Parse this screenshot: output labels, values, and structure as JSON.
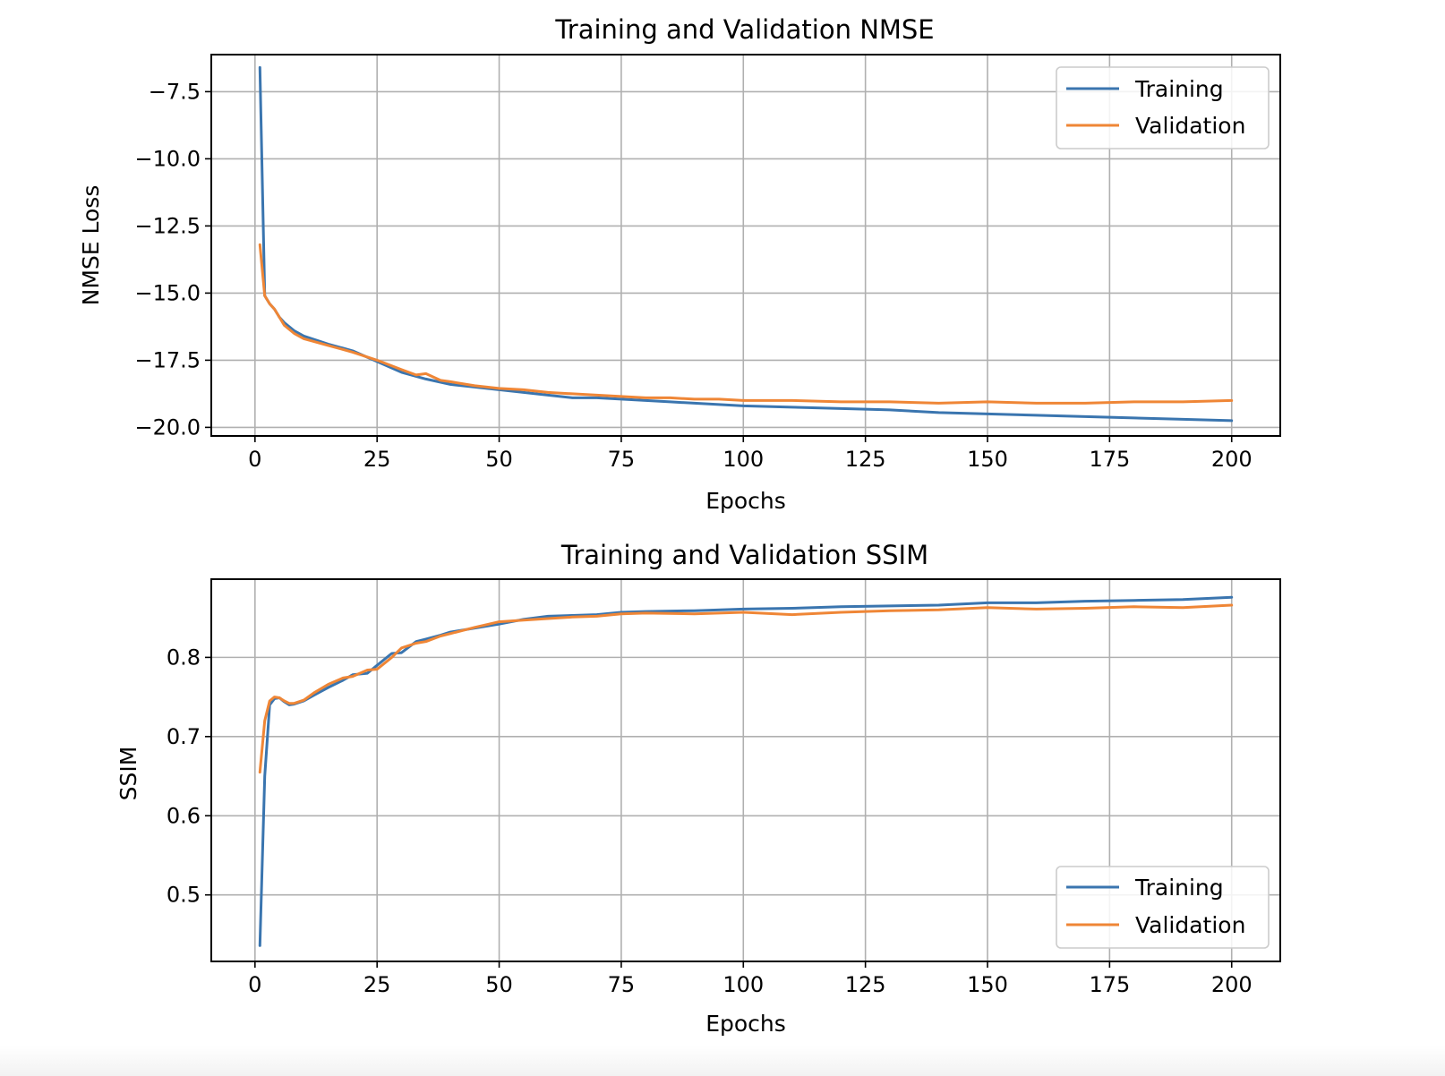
{
  "colors": {
    "training": "#3a75af",
    "validation": "#ef8636"
  },
  "chart_data": [
    {
      "type": "line",
      "title": "Training and Validation NMSE",
      "xlabel": "Epochs",
      "ylabel": "NMSE Loss",
      "xlim": [
        -8.95,
        209.95
      ],
      "ylim": [
        -20.32,
        -6.12
      ],
      "xticks": [
        0,
        25,
        50,
        75,
        100,
        125,
        150,
        175,
        200
      ],
      "xtick_labels": [
        "0",
        "25",
        "50",
        "75",
        "100",
        "125",
        "150",
        "175",
        "200"
      ],
      "yticks": [
        -7.5,
        -10.0,
        -12.5,
        -15.0,
        -17.5,
        -20.0
      ],
      "ytick_labels": [
        "−7.5",
        "−10.0",
        "−12.5",
        "−15.0",
        "−17.5",
        "−20.0"
      ],
      "grid": true,
      "legend_position": "upper right",
      "series": [
        {
          "name": "Training",
          "color": "#3a75af",
          "x": [
            1,
            2,
            3,
            4,
            5,
            6,
            8,
            10,
            15,
            20,
            25,
            30,
            35,
            40,
            45,
            50,
            55,
            60,
            65,
            70,
            75,
            80,
            85,
            90,
            95,
            100,
            110,
            120,
            130,
            140,
            150,
            160,
            170,
            180,
            190,
            200
          ],
          "y": [
            -6.6,
            -15.1,
            -15.4,
            -15.6,
            -15.9,
            -16.1,
            -16.4,
            -16.6,
            -16.9,
            -17.15,
            -17.55,
            -17.95,
            -18.2,
            -18.4,
            -18.5,
            -18.6,
            -18.7,
            -18.8,
            -18.9,
            -18.9,
            -18.95,
            -19.0,
            -19.05,
            -19.1,
            -19.15,
            -19.2,
            -19.25,
            -19.3,
            -19.35,
            -19.45,
            -19.5,
            -19.55,
            -19.6,
            -19.65,
            -19.7,
            -19.75
          ]
        },
        {
          "name": "Validation",
          "color": "#ef8636",
          "x": [
            1,
            2,
            3,
            4,
            5,
            6,
            8,
            10,
            15,
            20,
            25,
            30,
            33,
            35,
            38,
            40,
            45,
            50,
            55,
            60,
            65,
            70,
            75,
            80,
            85,
            90,
            95,
            100,
            110,
            120,
            130,
            140,
            150,
            160,
            170,
            180,
            190,
            200
          ],
          "y": [
            -13.2,
            -15.1,
            -15.4,
            -15.6,
            -15.9,
            -16.2,
            -16.5,
            -16.7,
            -16.95,
            -17.2,
            -17.5,
            -17.85,
            -18.05,
            -18.0,
            -18.25,
            -18.3,
            -18.45,
            -18.55,
            -18.6,
            -18.7,
            -18.75,
            -18.8,
            -18.85,
            -18.9,
            -18.9,
            -18.95,
            -18.95,
            -19.0,
            -19.0,
            -19.05,
            -19.05,
            -19.1,
            -19.05,
            -19.1,
            -19.1,
            -19.05,
            -19.05,
            -19.0
          ]
        }
      ]
    },
    {
      "type": "line",
      "title": "Training and Validation SSIM",
      "xlabel": "Epochs",
      "ylabel": "SSIM",
      "xlim": [
        -8.95,
        209.95
      ],
      "ylim": [
        0.416,
        0.8988
      ],
      "xticks": [
        0,
        25,
        50,
        75,
        100,
        125,
        150,
        175,
        200
      ],
      "xtick_labels": [
        "0",
        "25",
        "50",
        "75",
        "100",
        "125",
        "150",
        "175",
        "200"
      ],
      "yticks": [
        0.5,
        0.6,
        0.7,
        0.8
      ],
      "ytick_labels": [
        "0.5",
        "0.6",
        "0.7",
        "0.8"
      ],
      "grid": true,
      "legend_position": "lower right",
      "series": [
        {
          "name": "Training",
          "color": "#3a75af",
          "x": [
            1,
            2,
            3,
            4,
            5,
            6,
            7,
            8,
            10,
            12,
            15,
            18,
            20,
            23,
            25,
            28,
            30,
            33,
            35,
            38,
            40,
            45,
            50,
            55,
            60,
            65,
            70,
            75,
            80,
            90,
            100,
            110,
            120,
            130,
            140,
            150,
            160,
            170,
            180,
            190,
            200
          ],
          "y": [
            0.436,
            0.65,
            0.74,
            0.748,
            0.749,
            0.744,
            0.74,
            0.741,
            0.745,
            0.752,
            0.762,
            0.771,
            0.778,
            0.78,
            0.79,
            0.805,
            0.806,
            0.82,
            0.823,
            0.828,
            0.832,
            0.837,
            0.842,
            0.848,
            0.852,
            0.853,
            0.854,
            0.857,
            0.858,
            0.859,
            0.861,
            0.862,
            0.864,
            0.865,
            0.866,
            0.869,
            0.869,
            0.871,
            0.872,
            0.873,
            0.876
          ]
        },
        {
          "name": "Validation",
          "color": "#ef8636",
          "x": [
            1,
            2,
            3,
            4,
            5,
            6,
            7,
            8,
            10,
            12,
            15,
            18,
            20,
            23,
            25,
            28,
            30,
            33,
            35,
            38,
            40,
            45,
            50,
            55,
            60,
            65,
            70,
            75,
            80,
            90,
            100,
            110,
            120,
            130,
            140,
            150,
            160,
            170,
            180,
            190,
            200
          ],
          "y": [
            0.655,
            0.72,
            0.745,
            0.75,
            0.749,
            0.745,
            0.742,
            0.742,
            0.746,
            0.755,
            0.766,
            0.774,
            0.776,
            0.784,
            0.785,
            0.8,
            0.812,
            0.818,
            0.82,
            0.827,
            0.83,
            0.838,
            0.845,
            0.847,
            0.849,
            0.851,
            0.852,
            0.855,
            0.856,
            0.855,
            0.857,
            0.854,
            0.857,
            0.859,
            0.86,
            0.863,
            0.861,
            0.862,
            0.864,
            0.863,
            0.866
          ]
        }
      ]
    }
  ]
}
